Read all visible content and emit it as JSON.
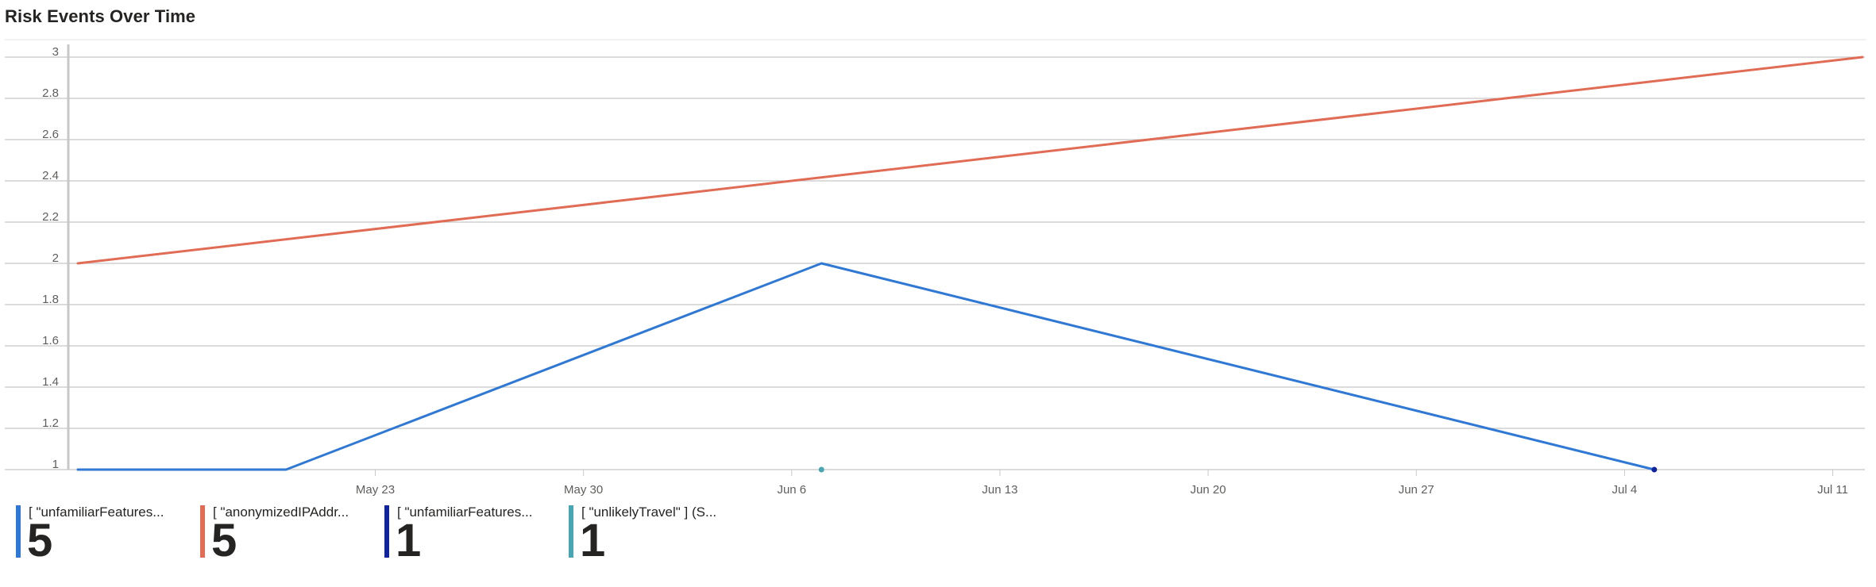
{
  "chart_data": {
    "type": "line",
    "title": "Risk Events Over Time",
    "xlabel": "",
    "ylabel": "",
    "ylim": [
      1,
      3
    ],
    "yticks": [
      "1",
      "1.2",
      "1.4",
      "1.6",
      "1.8",
      "2",
      "2.2",
      "2.4",
      "2.6",
      "2.8",
      "3"
    ],
    "xticks": [
      "May 23",
      "May 30",
      "Jun 6",
      "Jun 13",
      "Jun 20",
      "Jun 27",
      "Jul 4",
      "Jul 11"
    ],
    "xlim": [
      "2024-05-13",
      "2024-07-12"
    ],
    "grid": true,
    "legend_position": "bottom",
    "series": [
      {
        "name": "[ \"unfamiliarFeatures...",
        "color": "#2f78d4",
        "total": "5",
        "points": [
          {
            "x": "2024-05-13",
            "y": 1
          },
          {
            "x": "2024-05-20",
            "y": 1
          },
          {
            "x": "2024-06-07",
            "y": 2
          },
          {
            "x": "2024-07-05",
            "y": 1
          }
        ]
      },
      {
        "name": "[ \"anonymizedIPAddr...",
        "color": "#e06c55",
        "total": "5",
        "points": [
          {
            "x": "2024-05-13",
            "y": 2
          },
          {
            "x": "2024-07-12",
            "y": 3
          }
        ]
      },
      {
        "name": "[ \"unfamiliarFeatures...",
        "color": "#12239e",
        "total": "1",
        "points": [
          {
            "x": "2024-07-05",
            "y": 1
          }
        ]
      },
      {
        "name": "[ \"unlikelyTravel\" ] (S...",
        "color": "#48a5b1",
        "total": "1",
        "points": [
          {
            "x": "2024-06-07",
            "y": 1
          }
        ]
      }
    ]
  }
}
